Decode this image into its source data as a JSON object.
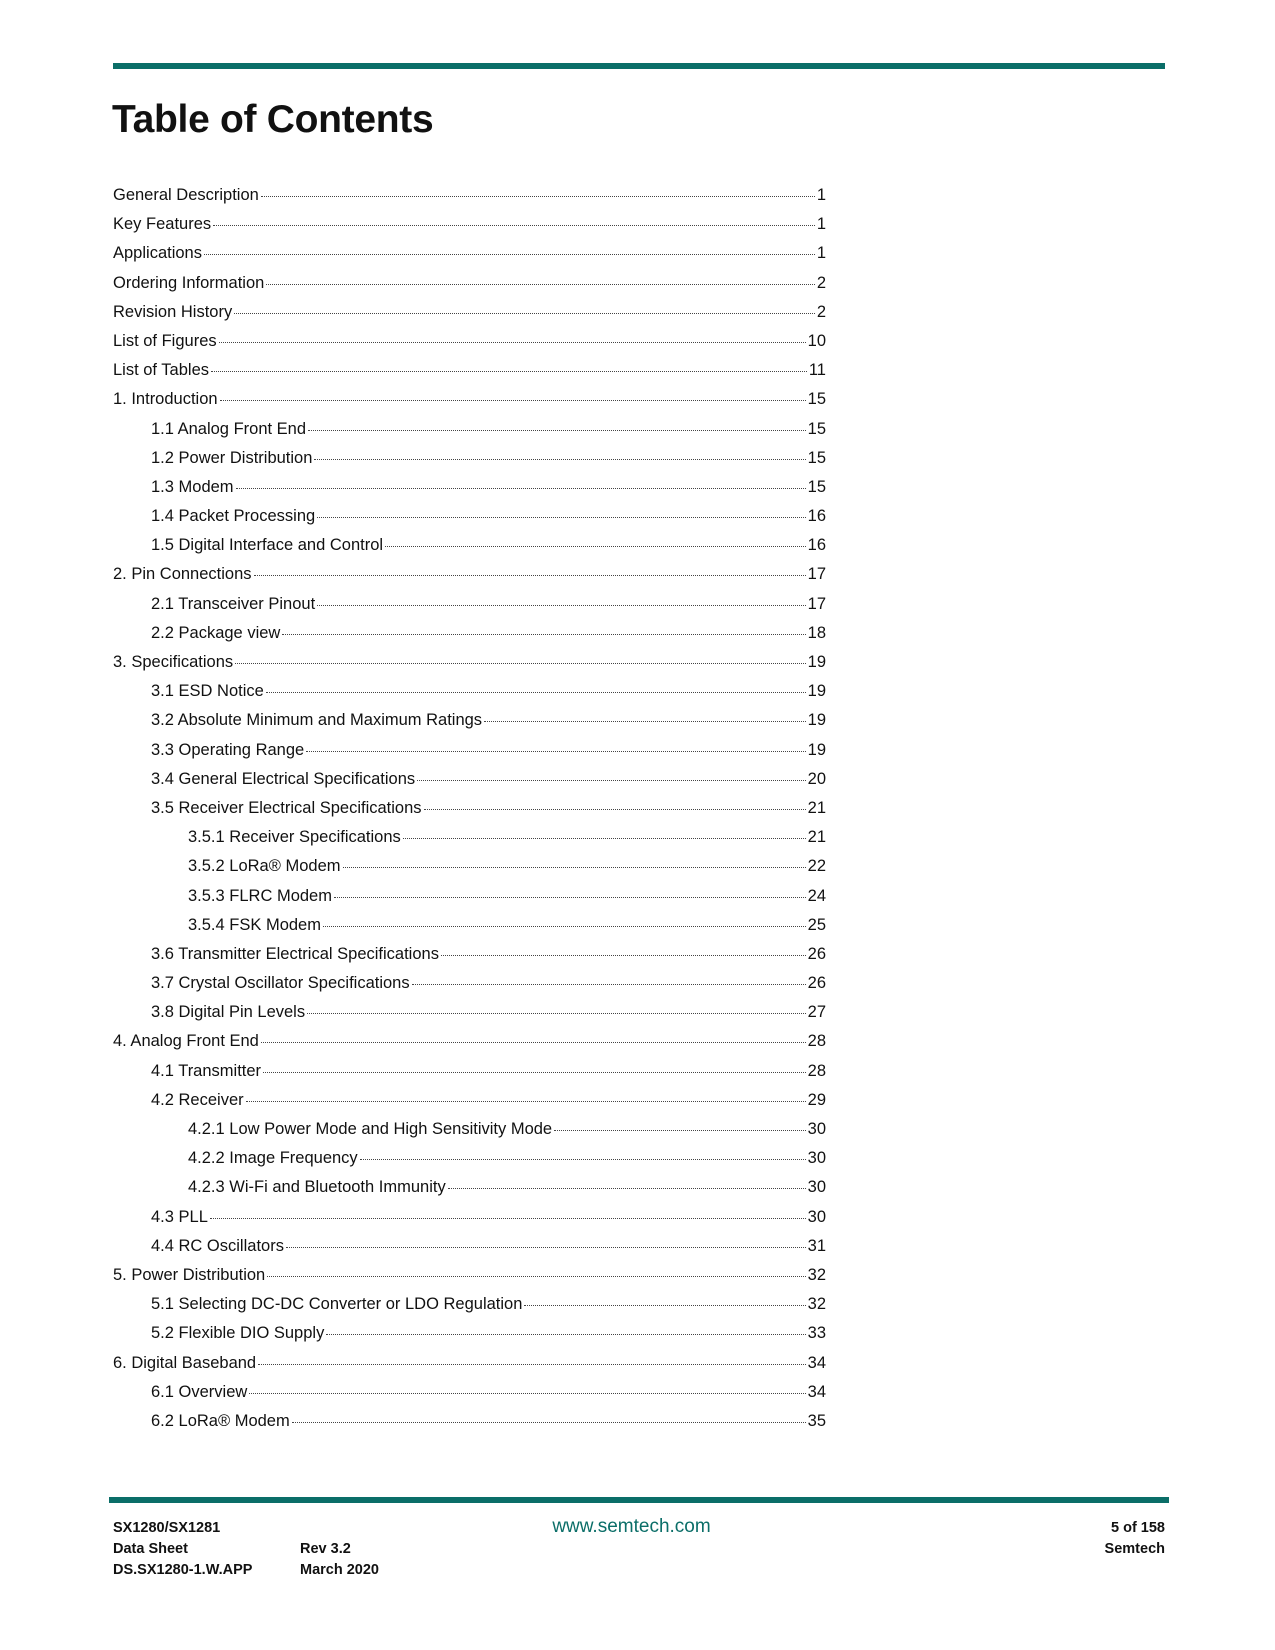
{
  "title": "Table of Contents",
  "accent_color": "#0b6e68",
  "entries": [
    {
      "label": "General Description",
      "page": "1",
      "level": 1
    },
    {
      "label": "Key Features",
      "page": "1",
      "level": 1
    },
    {
      "label": "Applications",
      "page": "1",
      "level": 1
    },
    {
      "label": "Ordering Information",
      "page": "2",
      "level": 1
    },
    {
      "label": "Revision History",
      "page": "2",
      "level": 1
    },
    {
      "label": "List of Figures",
      "page": "10",
      "level": 1
    },
    {
      "label": "List of Tables",
      "page": "11",
      "level": 1
    },
    {
      "label": "1. Introduction",
      "page": "15",
      "level": 1
    },
    {
      "label": "1.1 Analog Front End",
      "page": "15",
      "level": 2
    },
    {
      "label": "1.2 Power Distribution",
      "page": "15",
      "level": 2
    },
    {
      "label": "1.3 Modem",
      "page": "15",
      "level": 2
    },
    {
      "label": "1.4 Packet Processing",
      "page": "16",
      "level": 2
    },
    {
      "label": "1.5 Digital Interface and Control",
      "page": "16",
      "level": 2
    },
    {
      "label": "2. Pin Connections",
      "page": "17",
      "level": 1
    },
    {
      "label": "2.1 Transceiver Pinout",
      "page": "17",
      "level": 2
    },
    {
      "label": "2.2 Package view",
      "page": "18",
      "level": 2
    },
    {
      "label": "3. Specifications",
      "page": "19",
      "level": 1
    },
    {
      "label": "3.1 ESD Notice",
      "page": "19",
      "level": 2
    },
    {
      "label": "3.2 Absolute Minimum and Maximum Ratings",
      "page": "19",
      "level": 2
    },
    {
      "label": "3.3 Operating Range",
      "page": "19",
      "level": 2
    },
    {
      "label": "3.4 General Electrical Specifications",
      "page": "20",
      "level": 2
    },
    {
      "label": "3.5 Receiver Electrical Specifications",
      "page": "21",
      "level": 2
    },
    {
      "label": "3.5.1 Receiver Specifications",
      "page": "21",
      "level": 3
    },
    {
      "label": "3.5.2 LoRa® Modem",
      "page": "22",
      "level": 3
    },
    {
      "label": "3.5.3 FLRC Modem",
      "page": "24",
      "level": 3
    },
    {
      "label": "3.5.4 FSK Modem",
      "page": "25",
      "level": 3
    },
    {
      "label": "3.6 Transmitter Electrical Specifications",
      "page": "26",
      "level": 2
    },
    {
      "label": "3.7 Crystal Oscillator Specifications",
      "page": "26",
      "level": 2
    },
    {
      "label": "3.8 Digital Pin Levels",
      "page": "27",
      "level": 2
    },
    {
      "label": "4. Analog Front End",
      "page": "28",
      "level": 1
    },
    {
      "label": "4.1 Transmitter",
      "page": "28",
      "level": 2
    },
    {
      "label": "4.2 Receiver",
      "page": "29",
      "level": 2
    },
    {
      "label": "4.2.1 Low Power Mode and High Sensitivity Mode",
      "page": "30",
      "level": 3
    },
    {
      "label": "4.2.2 Image Frequency",
      "page": "30",
      "level": 3
    },
    {
      "label": "4.2.3 Wi-Fi and Bluetooth Immunity",
      "page": "30",
      "level": 3
    },
    {
      "label": "4.3 PLL",
      "page": "30",
      "level": 2
    },
    {
      "label": "4.4 RC Oscillators",
      "page": "31",
      "level": 2
    },
    {
      "label": "5. Power Distribution",
      "page": "32",
      "level": 1
    },
    {
      "label": "5.1 Selecting DC-DC Converter or LDO Regulation",
      "page": "32",
      "level": 2
    },
    {
      "label": "5.2 Flexible DIO Supply",
      "page": "33",
      "level": 2
    },
    {
      "label": "6. Digital Baseband",
      "page": "34",
      "level": 1
    },
    {
      "label": "6.1 Overview",
      "page": "34",
      "level": 2
    },
    {
      "label": "6.2 LoRa® Modem",
      "page": "35",
      "level": 2
    }
  ],
  "footer": {
    "product": "SX1280/SX1281",
    "doc_type": "Data Sheet",
    "doc_id": "DS.SX1280-1.W.APP",
    "revision": "Rev 3.2",
    "date": "March 2020",
    "website": "www.semtech.com",
    "page": "5 of 158",
    "company": "Semtech"
  }
}
